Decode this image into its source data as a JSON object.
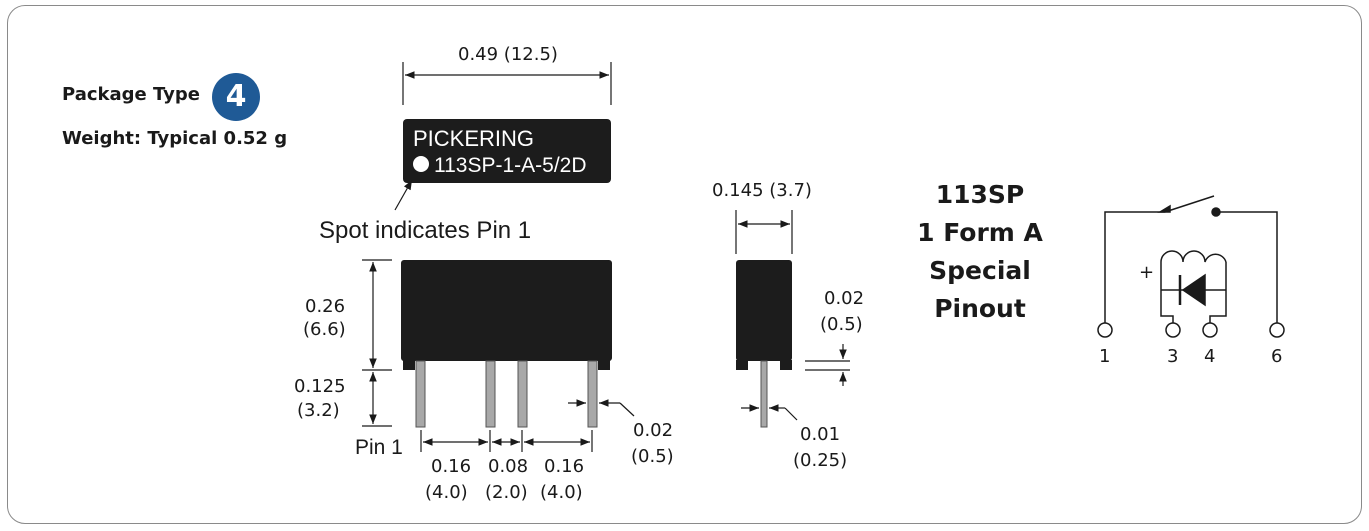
{
  "package": {
    "type_label": "Package Type",
    "type_number": "4",
    "weight_label": "Weight: Typical 0.52 g"
  },
  "chip": {
    "brand": "PICKERING",
    "part": "113SP-1-A-5/2D"
  },
  "spot_caption": "Spot indicates Pin 1",
  "dimensions": {
    "width_top": "0.49 (12.5)",
    "height_body_in": "0.26",
    "height_body_mm": "(6.6)",
    "pin_length_in": "0.125",
    "pin_length_mm": "(3.2)",
    "pin1_label": "Pin 1",
    "pitch_a_in": "0.16",
    "pitch_a_mm": "(4.0)",
    "pitch_b_in": "0.08",
    "pitch_b_mm": "(2.0)",
    "pitch_c_in": "0.16",
    "pitch_c_mm": "(4.0)",
    "pin_width_in": "0.02",
    "pin_width_mm": "(0.5)",
    "side_width": "0.145 (3.7)",
    "standoff_in": "0.02",
    "standoff_mm": "(0.5)",
    "pin_thick_in": "0.01",
    "pin_thick_mm": "(0.25)"
  },
  "model": {
    "line1": "113SP",
    "line2": "1 Form A",
    "line3": "Special",
    "line4": "Pinout"
  },
  "schematic": {
    "plus": "+",
    "pin1": "1",
    "pin3": "3",
    "pin4": "4",
    "pin6": "6"
  }
}
